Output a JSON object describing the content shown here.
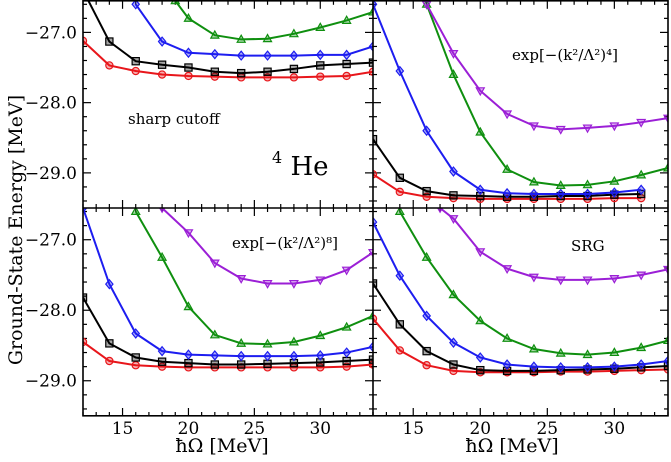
{
  "figure": {
    "ylabel": "Ground-State Energy [MeV]",
    "xlabel": "ħΩ [MeV]",
    "nucleus": {
      "mass": "4",
      "symbol": "He"
    }
  },
  "colors": {
    "red": "#e8161b",
    "black": "#000000",
    "blue": "#1d1df0",
    "green": "#0f8f0f",
    "purple": "#9b1fd6"
  },
  "chart_data": [
    {
      "type": "line",
      "panel": "top-left",
      "label": "sharp cutoff",
      "x_ticks": [
        15,
        20,
        25,
        30
      ],
      "y_ticks": [
        -27.0,
        -28.0,
        -29.0
      ],
      "y_tick_labels": [
        "−27.0",
        "−28.0",
        "−29.0"
      ],
      "xlim": [
        12,
        34
      ],
      "ylim": [
        -29.5,
        -26.55
      ],
      "series": [
        {
          "color": "red",
          "marker": "circle",
          "x": [
            12,
            14,
            16,
            18,
            20,
            22,
            24,
            26,
            28,
            30,
            32,
            34
          ],
          "y": [
            -27.12,
            -27.47,
            -27.55,
            -27.6,
            -27.62,
            -27.63,
            -27.64,
            -27.64,
            -27.64,
            -27.63,
            -27.62,
            -27.56
          ]
        },
        {
          "color": "black",
          "marker": "square",
          "x": [
            12,
            14,
            16,
            18,
            20,
            22,
            24,
            26,
            28,
            30,
            32,
            34
          ],
          "y": [
            -26.4,
            -27.13,
            -27.41,
            -27.46,
            -27.5,
            -27.56,
            -27.58,
            -27.56,
            -27.52,
            -27.47,
            -27.45,
            -27.43
          ]
        },
        {
          "color": "blue",
          "marker": "diamond",
          "x": [
            16,
            18,
            20,
            22,
            24,
            26,
            28,
            30,
            32,
            34
          ],
          "y": [
            -26.6,
            -27.13,
            -27.29,
            -27.31,
            -27.33,
            -27.33,
            -27.33,
            -27.32,
            -27.32,
            -27.2
          ]
        },
        {
          "color": "green",
          "marker": "triangle-up",
          "x": [
            19,
            20,
            22,
            24,
            26,
            28,
            30,
            32,
            34
          ],
          "y": [
            -26.55,
            -26.8,
            -27.04,
            -27.1,
            -27.09,
            -27.02,
            -26.93,
            -26.83,
            -26.71
          ]
        }
      ]
    },
    {
      "type": "line",
      "panel": "top-right",
      "label": "exp[−(k²/Λ²)⁴]",
      "x_ticks": [
        15,
        20,
        25,
        30
      ],
      "y_ticks": [
        -27.0,
        -28.0,
        -29.0
      ],
      "xlim": [
        12,
        34
      ],
      "ylim": [
        -29.5,
        -26.55
      ],
      "series": [
        {
          "color": "red",
          "marker": "circle",
          "x": [
            12,
            14,
            16,
            18,
            20,
            22,
            24,
            26,
            28,
            30,
            32
          ],
          "y": [
            -29.02,
            -29.27,
            -29.34,
            -29.36,
            -29.37,
            -29.37,
            -29.37,
            -29.37,
            -29.37,
            -29.36,
            -29.36
          ]
        },
        {
          "color": "black",
          "marker": "square",
          "x": [
            12,
            14,
            16,
            18,
            20,
            22,
            24,
            26,
            28,
            30,
            32
          ],
          "y": [
            -28.52,
            -29.07,
            -29.26,
            -29.32,
            -29.33,
            -29.34,
            -29.34,
            -29.33,
            -29.33,
            -29.31,
            -29.3
          ]
        },
        {
          "color": "blue",
          "marker": "diamond",
          "x": [
            12,
            14,
            16,
            18,
            20,
            22,
            24,
            26,
            28,
            30,
            32
          ],
          "y": [
            -26.6,
            -27.55,
            -28.4,
            -28.98,
            -29.24,
            -29.29,
            -29.3,
            -29.3,
            -29.3,
            -29.28,
            -29.24
          ]
        },
        {
          "color": "green",
          "marker": "triangle-up",
          "x": [
            16,
            18,
            20,
            22,
            24,
            26,
            28,
            30,
            32,
            34
          ],
          "y": [
            -26.6,
            -27.6,
            -28.42,
            -28.95,
            -29.13,
            -29.18,
            -29.17,
            -29.12,
            -29.03,
            -28.93
          ]
        },
        {
          "color": "purple",
          "marker": "triangle-down",
          "x": [
            16,
            18,
            20,
            22,
            24,
            26,
            28,
            30,
            32,
            34
          ],
          "y": [
            -26.6,
            -27.3,
            -27.83,
            -28.16,
            -28.33,
            -28.38,
            -28.36,
            -28.33,
            -28.28,
            -28.22
          ]
        }
      ]
    },
    {
      "type": "line",
      "panel": "bottom-left",
      "label": "exp[−(k²/Λ²)⁸]",
      "x_ticks": [
        15,
        20,
        25,
        30
      ],
      "x_tick_labels": [
        "15",
        "20",
        "25",
        "30"
      ],
      "y_ticks": [
        -27.0,
        -28.0,
        -29.0
      ],
      "y_tick_labels": [
        "−27.0",
        "−28.0",
        "−29.0"
      ],
      "xlim": [
        12,
        34
      ],
      "ylim": [
        -29.5,
        -26.55
      ],
      "series": [
        {
          "color": "red",
          "marker": "circle",
          "x": [
            12,
            14,
            16,
            18,
            20,
            22,
            24,
            26,
            28,
            30,
            32,
            34
          ],
          "y": [
            -28.45,
            -28.72,
            -28.78,
            -28.8,
            -28.81,
            -28.81,
            -28.81,
            -28.81,
            -28.81,
            -28.81,
            -28.8,
            -28.77
          ]
        },
        {
          "color": "black",
          "marker": "square",
          "x": [
            12,
            14,
            16,
            18,
            20,
            22,
            24,
            26,
            28,
            30,
            32,
            34
          ],
          "y": [
            -27.82,
            -28.47,
            -28.67,
            -28.73,
            -28.75,
            -28.77,
            -28.77,
            -28.76,
            -28.75,
            -28.74,
            -28.72,
            -28.7
          ]
        },
        {
          "color": "blue",
          "marker": "diamond",
          "x": [
            12,
            14,
            16,
            18,
            20,
            22,
            24,
            26,
            28,
            30,
            32,
            34
          ],
          "y": [
            -26.55,
            -27.63,
            -28.33,
            -28.58,
            -28.63,
            -28.64,
            -28.65,
            -28.65,
            -28.65,
            -28.64,
            -28.6,
            -28.52
          ]
        },
        {
          "color": "green",
          "marker": "triangle-up",
          "x": [
            16,
            18,
            20,
            22,
            24,
            26,
            28,
            30,
            32,
            34
          ],
          "y": [
            -26.6,
            -27.25,
            -27.95,
            -28.35,
            -28.47,
            -28.48,
            -28.45,
            -28.36,
            -28.24,
            -28.08
          ]
        },
        {
          "color": "purple",
          "marker": "triangle-down",
          "x": [
            18,
            20,
            22,
            24,
            26,
            28,
            30,
            32,
            34
          ],
          "y": [
            -26.55,
            -26.9,
            -27.33,
            -27.55,
            -27.62,
            -27.62,
            -27.57,
            -27.43,
            -27.18
          ]
        }
      ]
    },
    {
      "type": "line",
      "panel": "bottom-right",
      "label": "SRG",
      "x_ticks": [
        15,
        20,
        25,
        30
      ],
      "x_tick_labels": [
        "15",
        "20",
        "25",
        "30"
      ],
      "y_ticks": [
        -27.0,
        -28.0,
        -29.0
      ],
      "xlim": [
        12,
        34
      ],
      "ylim": [
        -29.5,
        -26.55
      ],
      "series": [
        {
          "color": "red",
          "marker": "circle",
          "x": [
            12,
            14,
            16,
            18,
            20,
            22,
            24,
            26,
            28,
            30,
            32,
            34
          ],
          "y": [
            -28.12,
            -28.57,
            -28.78,
            -28.86,
            -28.88,
            -28.88,
            -28.88,
            -28.87,
            -28.87,
            -28.86,
            -28.85,
            -28.84
          ]
        },
        {
          "color": "black",
          "marker": "square",
          "x": [
            12,
            14,
            16,
            18,
            20,
            22,
            24,
            26,
            28,
            30,
            32,
            34
          ],
          "y": [
            -27.62,
            -28.2,
            -28.58,
            -28.77,
            -28.85,
            -28.86,
            -28.86,
            -28.85,
            -28.84,
            -28.83,
            -28.81,
            -28.79
          ]
        },
        {
          "color": "blue",
          "marker": "diamond",
          "x": [
            12,
            14,
            16,
            18,
            20,
            22,
            24,
            26,
            28,
            30,
            32,
            34
          ],
          "y": [
            -26.75,
            -27.51,
            -28.08,
            -28.46,
            -28.67,
            -28.77,
            -28.8,
            -28.81,
            -28.81,
            -28.8,
            -28.77,
            -28.72
          ]
        },
        {
          "color": "green",
          "marker": "triangle-up",
          "x": [
            14,
            16,
            18,
            20,
            22,
            24,
            26,
            28,
            30,
            32,
            34
          ],
          "y": [
            -26.6,
            -27.25,
            -27.78,
            -28.15,
            -28.4,
            -28.55,
            -28.61,
            -28.63,
            -28.6,
            -28.53,
            -28.43
          ]
        },
        {
          "color": "purple",
          "marker": "triangle-down",
          "x": [
            17,
            18,
            20,
            22,
            24,
            26,
            28,
            30,
            32,
            34
          ],
          "y": [
            -26.55,
            -26.7,
            -27.17,
            -27.41,
            -27.53,
            -27.57,
            -27.57,
            -27.55,
            -27.5,
            -27.42
          ]
        }
      ]
    }
  ]
}
